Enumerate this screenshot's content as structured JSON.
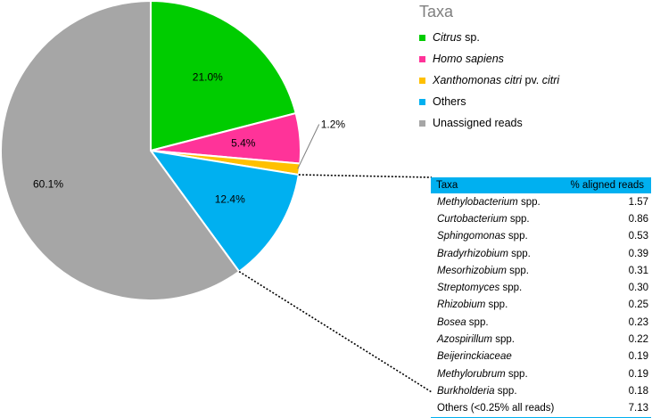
{
  "chart_data": {
    "type": "pie",
    "legend_title": "Taxa",
    "slices": [
      {
        "name": "Citrus",
        "suffix": " sp.",
        "italic": true,
        "value": 21.0,
        "label": "21.0%",
        "color": "#00cc00"
      },
      {
        "name": "Homo sapiens",
        "suffix": "",
        "italic": true,
        "value": 5.4,
        "label": "5.4%",
        "color": "#ff3399"
      },
      {
        "name": "Xanthomonas citri",
        "suffix": " pv. ",
        "suffix_italic": "citri",
        "italic": true,
        "value": 1.2,
        "label": "1.2%",
        "color": "#ffc000"
      },
      {
        "name": "Others",
        "suffix": "",
        "italic": false,
        "value": 12.4,
        "label": "12.4%",
        "color": "#00b0f0"
      },
      {
        "name": "Unassigned reads",
        "suffix": "",
        "italic": false,
        "value": 60.1,
        "label": "60.1%",
        "color": "#a6a6a6"
      }
    ],
    "breakdown_table": {
      "header": [
        "Taxa",
        "% aligned reads"
      ],
      "rows": [
        {
          "taxon": "Methylobacterium",
          "suffix": " spp.",
          "value": "1.57"
        },
        {
          "taxon": "Curtobacterium",
          "suffix": " spp.",
          "value": "0.86"
        },
        {
          "taxon": "Sphingomonas",
          "suffix": " spp.",
          "value": "0.53"
        },
        {
          "taxon": "Bradyrhizobium",
          "suffix": " spp.",
          "value": "0.39"
        },
        {
          "taxon": "Mesorhizobium",
          "suffix": " spp.",
          "value": "0.31"
        },
        {
          "taxon": "Streptomyces",
          "suffix": " spp.",
          "value": "0.30"
        },
        {
          "taxon": "Rhizobium",
          "suffix": " spp.",
          "value": "0.25"
        },
        {
          "taxon": "Bosea",
          "suffix": " spp.",
          "value": "0.23"
        },
        {
          "taxon": "Azospirillum",
          "suffix": " spp.",
          "value": "0.22"
        },
        {
          "taxon": "Beijerinckiaceae",
          "suffix": "",
          "value": "0.19"
        },
        {
          "taxon": "Methylorubrum",
          "suffix": " spp.",
          "value": "0.19"
        },
        {
          "taxon": "Burkholderia",
          "suffix": " spp.",
          "value": "0.18"
        },
        {
          "taxon": "",
          "suffix": "Others (<0.25% all reads)",
          "value": "7.13"
        }
      ]
    }
  }
}
